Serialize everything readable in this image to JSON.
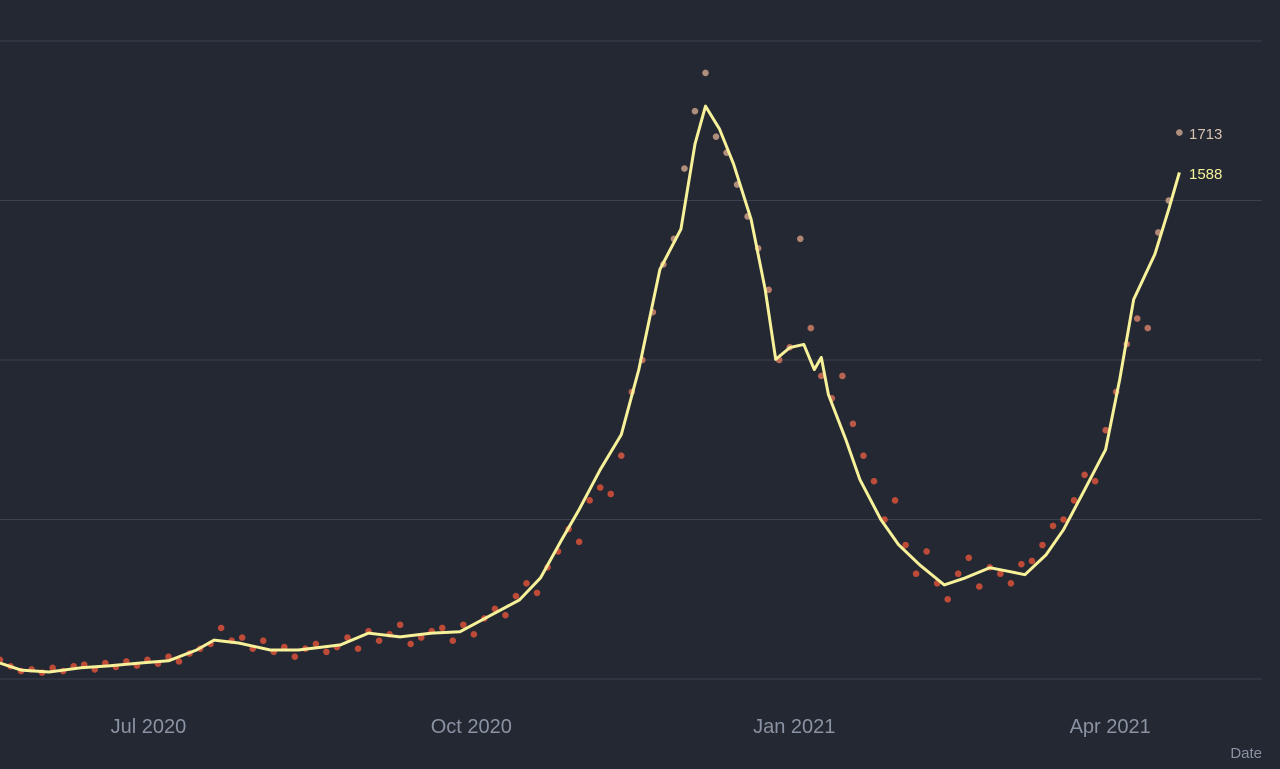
{
  "chart_data": {
    "type": "line",
    "title": "",
    "xlabel": "Date",
    "ylabel": "",
    "x_start_date": "2020-05-20",
    "x_tick_labels": [
      {
        "label": "Jul 2020",
        "day": 42
      },
      {
        "label": "Oct 2020",
        "day": 134
      },
      {
        "label": "Jan 2021",
        "day": 226
      },
      {
        "label": "Apr 2021",
        "day": 316
      }
    ],
    "ylim": [
      0,
      2000
    ],
    "y_gridlines": [
      0,
      500,
      1000,
      1500,
      2000
    ],
    "grid": true,
    "series": [
      {
        "name": "7-day average",
        "type": "line",
        "color": "#f7f199",
        "end_label": "1588",
        "points": [
          [
            0,
            50
          ],
          [
            6,
            28
          ],
          [
            14,
            22
          ],
          [
            23,
            35
          ],
          [
            31,
            41
          ],
          [
            40,
            50
          ],
          [
            48,
            57
          ],
          [
            56,
            91
          ],
          [
            61,
            122
          ],
          [
            68,
            113
          ],
          [
            77,
            91
          ],
          [
            85,
            91
          ],
          [
            97,
            107
          ],
          [
            105,
            144
          ],
          [
            114,
            132
          ],
          [
            123,
            144
          ],
          [
            131,
            148
          ],
          [
            140,
            201
          ],
          [
            148,
            248
          ],
          [
            154,
            317
          ],
          [
            160,
            436
          ],
          [
            165,
            531
          ],
          [
            171,
            656
          ],
          [
            177,
            766
          ],
          [
            182,
            970
          ],
          [
            188,
            1284
          ],
          [
            194,
            1410
          ],
          [
            198,
            1677
          ],
          [
            201,
            1796
          ],
          [
            205,
            1724
          ],
          [
            209,
            1614
          ],
          [
            214,
            1441
          ],
          [
            218,
            1221
          ],
          [
            221,
            1002
          ],
          [
            225,
            1039
          ],
          [
            229,
            1049
          ],
          [
            232,
            970
          ],
          [
            234,
            1008
          ],
          [
            236,
            892
          ],
          [
            241,
            750
          ],
          [
            245,
            625
          ],
          [
            251,
            499
          ],
          [
            256,
            421
          ],
          [
            262,
            358
          ],
          [
            269,
            295
          ],
          [
            275,
            317
          ],
          [
            282,
            349
          ],
          [
            288,
            336
          ],
          [
            292,
            327
          ],
          [
            298,
            389
          ],
          [
            303,
            468
          ],
          [
            309,
            593
          ],
          [
            315,
            719
          ],
          [
            319,
            939
          ],
          [
            323,
            1190
          ],
          [
            329,
            1331
          ],
          [
            333,
            1473
          ],
          [
            336,
            1588
          ]
        ]
      },
      {
        "name": "Daily value",
        "type": "scatter",
        "color_low": "#d9503a",
        "color_high": "#c9a08a",
        "end_label": "1713",
        "start_day": 0,
        "step_days": 3,
        "values": [
          60,
          40,
          25,
          30,
          20,
          35,
          25,
          40,
          45,
          30,
          50,
          38,
          55,
          42,
          60,
          48,
          70,
          55,
          80,
          95,
          110,
          160,
          120,
          130,
          95,
          120,
          85,
          100,
          70,
          95,
          110,
          85,
          100,
          130,
          95,
          150,
          120,
          140,
          170,
          110,
          130,
          150,
          160,
          120,
          170,
          140,
          190,
          220,
          200,
          260,
          300,
          270,
          350,
          400,
          470,
          430,
          560,
          600,
          580,
          700,
          900,
          1000,
          1150,
          1300,
          1380,
          1600,
          1780,
          1900,
          1700,
          1650,
          1550,
          1450,
          1350,
          1220,
          1000,
          1040,
          1380,
          1100,
          950,
          880,
          950,
          800,
          700,
          620,
          500,
          560,
          420,
          330,
          400,
          300,
          250,
          330,
          380,
          290,
          350,
          330,
          300,
          360,
          370,
          420,
          480,
          500,
          560,
          640,
          620,
          780,
          900,
          1050,
          1130,
          1100,
          1400,
          1500,
          1713
        ]
      }
    ]
  }
}
